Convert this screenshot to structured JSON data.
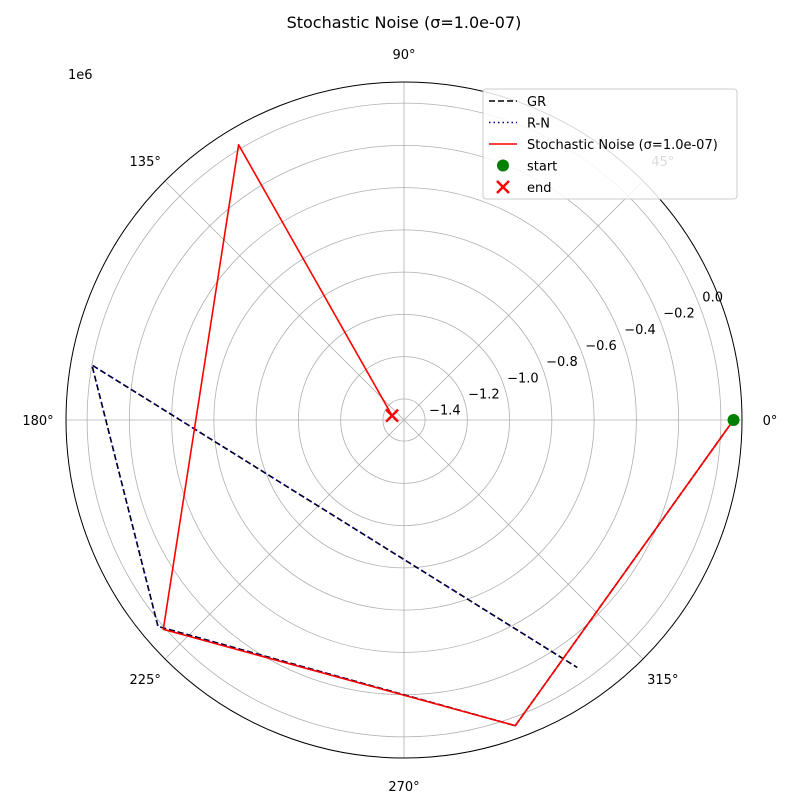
{
  "chart_data": {
    "type": "line",
    "projection": "polar",
    "title": "Stochastic Noise (σ=1.0e-07)",
    "r_offset_label": "1e6",
    "r_lim": [
      -1.5,
      0.1
    ],
    "r_ticks": [
      -1.4,
      -1.2,
      -1.0,
      -0.8,
      -0.6,
      -0.4,
      -0.2,
      0.0
    ],
    "r_tick_labels": [
      "−1.4",
      "−1.2",
      "−1.0",
      "−0.8",
      "−0.6",
      "−0.4",
      "−0.2",
      "0.0"
    ],
    "theta_ticks": [
      0,
      45,
      90,
      135,
      180,
      225,
      270,
      315
    ],
    "theta_tick_labels": [
      "0°",
      "45°",
      "90°",
      "135°",
      "180°",
      "225°",
      "270°",
      "315°"
    ],
    "grid": true,
    "legend_position": "top-right",
    "series": [
      {
        "name": "GR",
        "style": "dashed",
        "color": "#000000",
        "points": [
          {
            "theta_deg": 0.0,
            "r": 0.06
          },
          {
            "theta_deg": 290.0,
            "r": 0.04
          },
          {
            "theta_deg": 220.0,
            "r": 0.02
          },
          {
            "theta_deg": 170.0,
            "r": 0.0
          },
          {
            "theta_deg": 305.0,
            "r": -0.07
          }
        ]
      },
      {
        "name": "R-N",
        "style": "dotted",
        "color": "#00008b",
        "points": [
          {
            "theta_deg": 0.0,
            "r": 0.06
          },
          {
            "theta_deg": 290.0,
            "r": 0.04
          },
          {
            "theta_deg": 220.0,
            "r": 0.02
          },
          {
            "theta_deg": 170.0,
            "r": 0.0
          },
          {
            "theta_deg": 305.0,
            "r": -0.07
          }
        ]
      },
      {
        "name": "Stochastic Noise (σ=1.0e-07)",
        "style": "solid",
        "color": "#ff0000",
        "points": [
          {
            "theta_deg": 0.0,
            "r": 0.06
          },
          {
            "theta_deg": 290.0,
            "r": 0.04
          },
          {
            "theta_deg": 221.0,
            "r": 0.01
          },
          {
            "theta_deg": 121.0,
            "r": 0.02
          },
          {
            "theta_deg": 160.0,
            "r": -1.44
          }
        ]
      }
    ],
    "markers": [
      {
        "name": "start",
        "shape": "circle",
        "color": "#008000",
        "theta_deg": 0.0,
        "r": 0.06
      },
      {
        "name": "end",
        "shape": "x",
        "color": "#ff0000",
        "theta_deg": 160.0,
        "r": -1.44
      }
    ]
  }
}
